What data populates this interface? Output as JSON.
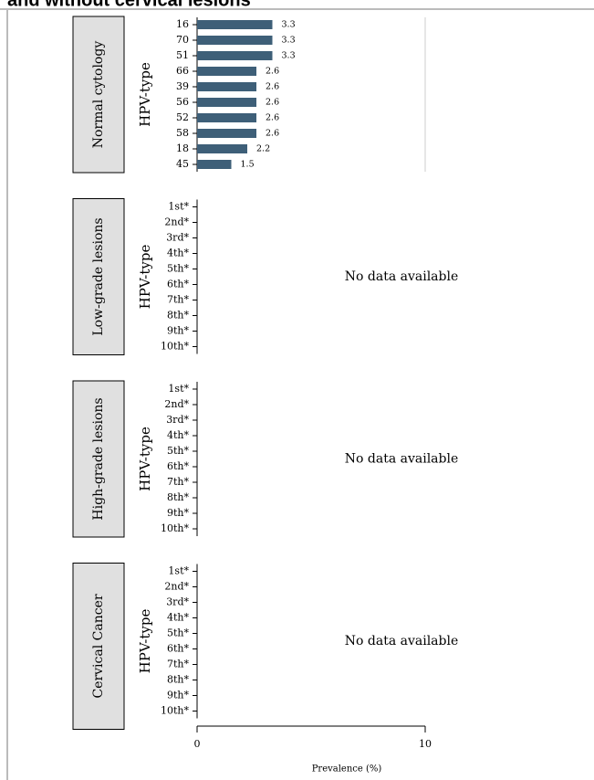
{
  "chart_data": {
    "type": "bar",
    "orientation": "horizontal",
    "title": "and without cervical lesions",
    "xlabel": "Prevalence (%)",
    "xlim": [
      0,
      10
    ],
    "xticks": [
      0,
      10
    ],
    "grid": true,
    "color": "#3e5f78",
    "panels": [
      {
        "label": "Normal cytology",
        "ylabel": "HPV-type",
        "categories": [
          "16",
          "70",
          "51",
          "66",
          "39",
          "56",
          "52",
          "58",
          "18",
          "45"
        ],
        "values": [
          3.3,
          3.3,
          3.3,
          2.6,
          2.6,
          2.6,
          2.6,
          2.6,
          2.2,
          1.5
        ]
      },
      {
        "label": "Low-grade lesions",
        "ylabel": "HPV-type",
        "categories": [
          "1st*",
          "2nd*",
          "3rd*",
          "4th*",
          "5th*",
          "6th*",
          "7th*",
          "8th*",
          "9th*",
          "10th*"
        ],
        "note": "No data available"
      },
      {
        "label": "High-grade lesions",
        "ylabel": "HPV-type",
        "categories": [
          "1st*",
          "2nd*",
          "3rd*",
          "4th*",
          "5th*",
          "6th*",
          "7th*",
          "8th*",
          "9th*",
          "10th*"
        ],
        "note": "No data available"
      },
      {
        "label": "Cervical Cancer",
        "ylabel": "HPV-type",
        "categories": [
          "1st*",
          "2nd*",
          "3rd*",
          "4th*",
          "5th*",
          "6th*",
          "7th*",
          "8th*",
          "9th*",
          "10th*"
        ],
        "note": "No data available"
      }
    ]
  }
}
